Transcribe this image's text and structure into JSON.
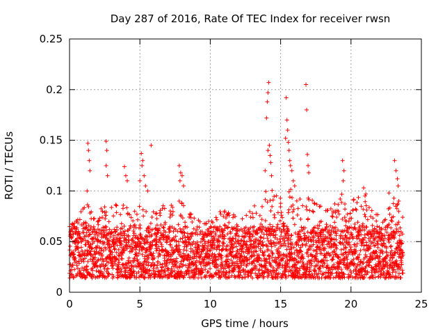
{
  "chart_data": {
    "type": "scatter",
    "title": "Day 287 of 2016, Rate Of TEC Index for receiver rwsn",
    "xlabel": "GPS time / hours",
    "ylabel": "ROTI / TECUs",
    "xlim": [
      0,
      25
    ],
    "ylim": [
      0,
      0.25
    ],
    "xticks": [
      0,
      5,
      10,
      15,
      20,
      25
    ],
    "xtick_labels": [
      "0",
      "5",
      "10",
      "15",
      "20",
      "25"
    ],
    "yticks": [
      0,
      0.05,
      0.1,
      0.15,
      0.2,
      0.25
    ],
    "ytick_labels": [
      "0",
      "0.05",
      "0.1",
      "0.15",
      "0.2",
      "0.25"
    ],
    "grid": true,
    "marker": "+",
    "color": "#ff0000",
    "x_range": [
      0,
      23.7
    ],
    "bulk_band": [
      0.01,
      0.065
    ],
    "envelope": [
      [
        0.0,
        0.065
      ],
      [
        0.5,
        0.072
      ],
      [
        1.0,
        0.085
      ],
      [
        1.5,
        0.09
      ],
      [
        2.0,
        0.08
      ],
      [
        2.5,
        0.088
      ],
      [
        3.0,
        0.085
      ],
      [
        3.5,
        0.09
      ],
      [
        4.0,
        0.085
      ],
      [
        4.5,
        0.08
      ],
      [
        5.0,
        0.095
      ],
      [
        5.5,
        0.085
      ],
      [
        6.0,
        0.08
      ],
      [
        6.5,
        0.085
      ],
      [
        7.0,
        0.09
      ],
      [
        7.5,
        0.095
      ],
      [
        8.0,
        0.09
      ],
      [
        8.5,
        0.085
      ],
      [
        9.0,
        0.075
      ],
      [
        9.5,
        0.07
      ],
      [
        10.0,
        0.072
      ],
      [
        10.5,
        0.078
      ],
      [
        11.0,
        0.082
      ],
      [
        11.5,
        0.08
      ],
      [
        12.0,
        0.075
      ],
      [
        12.5,
        0.078
      ],
      [
        13.0,
        0.085
      ],
      [
        13.5,
        0.09
      ],
      [
        14.0,
        0.105
      ],
      [
        14.5,
        0.1
      ],
      [
        15.0,
        0.095
      ],
      [
        15.5,
        0.1
      ],
      [
        16.0,
        0.105
      ],
      [
        16.5,
        0.09
      ],
      [
        17.0,
        0.095
      ],
      [
        17.5,
        0.09
      ],
      [
        18.0,
        0.085
      ],
      [
        18.5,
        0.082
      ],
      [
        19.0,
        0.09
      ],
      [
        19.5,
        0.1
      ],
      [
        20.0,
        0.09
      ],
      [
        20.5,
        0.095
      ],
      [
        21.0,
        0.1
      ],
      [
        21.5,
        0.085
      ],
      [
        22.0,
        0.075
      ],
      [
        22.5,
        0.08
      ],
      [
        23.0,
        0.095
      ],
      [
        23.5,
        0.085
      ]
    ],
    "spikes": [
      {
        "x": 1.3,
        "y": 0.147
      },
      {
        "x": 1.35,
        "y": 0.14
      },
      {
        "x": 1.4,
        "y": 0.13
      },
      {
        "x": 1.45,
        "y": 0.12
      },
      {
        "x": 1.25,
        "y": 0.1
      },
      {
        "x": 2.6,
        "y": 0.149
      },
      {
        "x": 2.65,
        "y": 0.14
      },
      {
        "x": 2.6,
        "y": 0.125
      },
      {
        "x": 2.7,
        "y": 0.115
      },
      {
        "x": 3.9,
        "y": 0.124
      },
      {
        "x": 4.0,
        "y": 0.115
      },
      {
        "x": 4.1,
        "y": 0.11
      },
      {
        "x": 5.1,
        "y": 0.137
      },
      {
        "x": 5.2,
        "y": 0.13
      },
      {
        "x": 5.15,
        "y": 0.125
      },
      {
        "x": 5.3,
        "y": 0.115
      },
      {
        "x": 5.0,
        "y": 0.11
      },
      {
        "x": 5.4,
        "y": 0.105
      },
      {
        "x": 5.55,
        "y": 0.1
      },
      {
        "x": 5.8,
        "y": 0.145
      },
      {
        "x": 7.8,
        "y": 0.125
      },
      {
        "x": 7.9,
        "y": 0.118
      },
      {
        "x": 8.0,
        "y": 0.115
      },
      {
        "x": 7.85,
        "y": 0.11
      },
      {
        "x": 8.1,
        "y": 0.105
      },
      {
        "x": 14.0,
        "y": 0.172
      },
      {
        "x": 14.1,
        "y": 0.197
      },
      {
        "x": 14.15,
        "y": 0.207
      },
      {
        "x": 14.05,
        "y": 0.188
      },
      {
        "x": 14.2,
        "y": 0.145
      },
      {
        "x": 14.1,
        "y": 0.14
      },
      {
        "x": 14.25,
        "y": 0.135
      },
      {
        "x": 14.3,
        "y": 0.128
      },
      {
        "x": 13.9,
        "y": 0.12
      },
      {
        "x": 14.35,
        "y": 0.115
      },
      {
        "x": 15.4,
        "y": 0.192
      },
      {
        "x": 15.45,
        "y": 0.17
      },
      {
        "x": 15.5,
        "y": 0.16
      },
      {
        "x": 15.35,
        "y": 0.152
      },
      {
        "x": 15.55,
        "y": 0.148
      },
      {
        "x": 15.6,
        "y": 0.14
      },
      {
        "x": 15.65,
        "y": 0.13
      },
      {
        "x": 15.7,
        "y": 0.125
      },
      {
        "x": 15.8,
        "y": 0.12
      },
      {
        "x": 15.9,
        "y": 0.11
      },
      {
        "x": 16.0,
        "y": 0.105
      },
      {
        "x": 16.8,
        "y": 0.205
      },
      {
        "x": 16.85,
        "y": 0.18
      },
      {
        "x": 16.9,
        "y": 0.136
      },
      {
        "x": 16.95,
        "y": 0.125
      },
      {
        "x": 17.0,
        "y": 0.118
      },
      {
        "x": 19.4,
        "y": 0.13
      },
      {
        "x": 19.5,
        "y": 0.12
      },
      {
        "x": 19.45,
        "y": 0.11
      },
      {
        "x": 20.9,
        "y": 0.103
      },
      {
        "x": 21.0,
        "y": 0.095
      },
      {
        "x": 22.7,
        "y": 0.098
      },
      {
        "x": 23.1,
        "y": 0.13
      },
      {
        "x": 23.2,
        "y": 0.12
      },
      {
        "x": 23.3,
        "y": 0.112
      },
      {
        "x": 23.35,
        "y": 0.105
      },
      {
        "x": 23.4,
        "y": 0.09
      }
    ]
  }
}
